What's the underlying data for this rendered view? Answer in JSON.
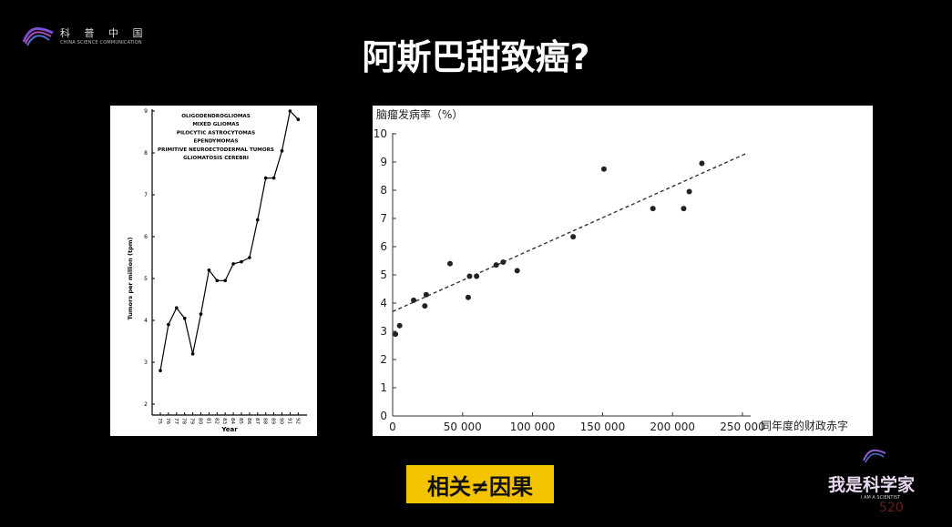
{
  "header": {
    "logo_cn": "科 普 中 国",
    "logo_en": "CHINA SCIENCE COMMUNICATION",
    "title": "阿斯巴甜致癌?"
  },
  "caption": "相关≠因果",
  "watermark": {
    "name": "我是科学家",
    "en": "I AM A SCIENTIST",
    "number": "520"
  },
  "chart_data": [
    {
      "type": "line",
      "legend_lines": [
        "OLIGODENDROGLIOMAS",
        "MIXED GLIOMAS",
        "PILOCYTIC ASTROCYTOMAS",
        "EPENDYMOMAS",
        "PRIMITIVE NEUROECTODERMAL TUMORS",
        "GLIOMATOSIS CEREBRI"
      ],
      "xlabel": "Year",
      "ylabel": "Tumors per million (tpm)",
      "x": [
        "75",
        "76",
        "77",
        "78",
        "79",
        "80",
        "81",
        "82",
        "83",
        "84",
        "85",
        "86",
        "87",
        "88",
        "89",
        "90",
        "91",
        "92"
      ],
      "y_ticks": [
        2,
        3,
        4,
        5,
        6,
        7,
        8,
        9
      ],
      "ylim": [
        2,
        9
      ],
      "series": [
        {
          "values": [
            2.8,
            3.9,
            4.3,
            4.05,
            3.2,
            4.15,
            5.2,
            4.95,
            4.95,
            5.35,
            5.4,
            5.5,
            6.4,
            7.4,
            7.4,
            8.05,
            9.0,
            8.8
          ]
        }
      ],
      "grid": false
    },
    {
      "type": "scatter",
      "ylabel": "脑瘤发病率（%）",
      "xlabel": "同年度的财政赤字",
      "x_ticks": [
        "0",
        "50 000",
        "100 000",
        "150 000",
        "200 000",
        "250 000"
      ],
      "x_tick_values": [
        0,
        50000,
        100000,
        150000,
        200000,
        250000
      ],
      "y_ticks": [
        0,
        1,
        2,
        3,
        4,
        5,
        6,
        7,
        8,
        9,
        10
      ],
      "xlim": [
        0,
        250000
      ],
      "ylim": [
        0,
        10
      ],
      "points": [
        {
          "x": 2000,
          "y": 2.9
        },
        {
          "x": 5000,
          "y": 3.2
        },
        {
          "x": 15000,
          "y": 4.1
        },
        {
          "x": 23000,
          "y": 3.9
        },
        {
          "x": 24000,
          "y": 4.3
        },
        {
          "x": 41000,
          "y": 5.4
        },
        {
          "x": 54000,
          "y": 4.2
        },
        {
          "x": 55000,
          "y": 4.95
        },
        {
          "x": 60000,
          "y": 4.95
        },
        {
          "x": 74000,
          "y": 5.35
        },
        {
          "x": 79000,
          "y": 5.45
        },
        {
          "x": 89000,
          "y": 5.15
        },
        {
          "x": 129000,
          "y": 6.35
        },
        {
          "x": 151000,
          "y": 8.75
        },
        {
          "x": 186000,
          "y": 7.35
        },
        {
          "x": 208000,
          "y": 7.35
        },
        {
          "x": 212000,
          "y": 7.95
        },
        {
          "x": 221000,
          "y": 8.95
        }
      ],
      "trendline": {
        "style": "dashed",
        "y_start": 3.7,
        "y_end": 9.3,
        "x_end": 250000
      },
      "grid": false
    }
  ]
}
